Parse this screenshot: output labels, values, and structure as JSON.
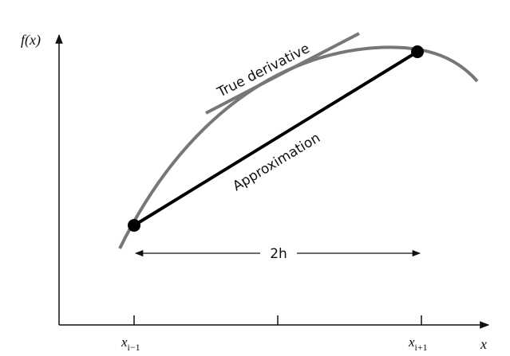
{
  "y_axis_label": "f(x)",
  "x_axis_label": "x",
  "ticks": [
    {
      "main": "x",
      "sub": "i−1"
    },
    {
      "main": "x",
      "sub": "i+1"
    }
  ],
  "tangent_label": "True derivative",
  "chord_label": "Approximation",
  "interval_label": "2h"
}
